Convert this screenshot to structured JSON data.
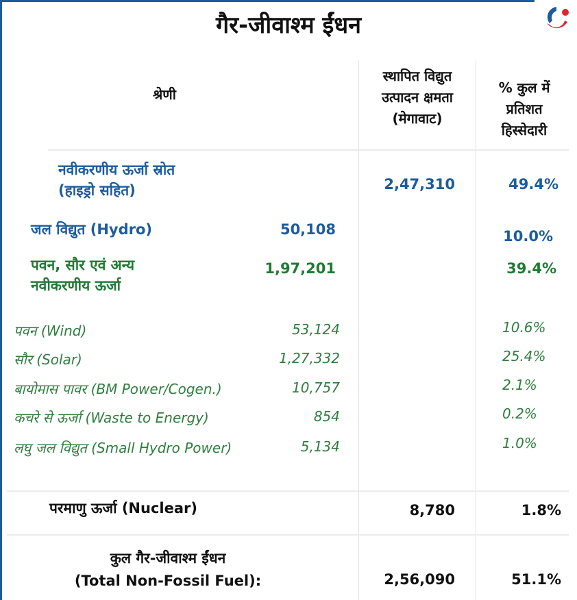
{
  "title": "गैर-जीवाश्म ईंधन",
  "header": {
    "category": "श्रेणी",
    "capacity": [
      "स्थापित विद्युत",
      "उत्पादन क्षमता",
      "(मेगावाट)"
    ],
    "share": [
      "% कुल में",
      "प्रतिशत",
      "हिस्सेदारी"
    ]
  },
  "renewable": {
    "label": [
      "नवीकरणीय ऊर्जा स्रोत",
      "(हाइड्रो सहित)"
    ],
    "capacity": "2,47,310",
    "share": "49.4%"
  },
  "hydro": {
    "label": "जल विद्युत (Hydro)",
    "capacity": "50,108",
    "share": "10.0%"
  },
  "wind_solar_other": {
    "label": [
      "पवन, सौर एवं अन्य",
      "नवीकरणीय ऊर्जा"
    ],
    "capacity": "1,97,201",
    "share": "39.4%"
  },
  "sub_rows": [
    {
      "label": "पवन (Wind)",
      "capacity": "53,124",
      "share": "10.6%"
    },
    {
      "label": "सौर (Solar)",
      "capacity": "1,27,332",
      "share": "25.4%"
    },
    {
      "label": "बायोमास पावर (BM Power/Cogen.)",
      "capacity": "10,757",
      "share": "2.1%"
    },
    {
      "label": "कचरे से ऊर्जा (Waste to Energy)",
      "capacity": "854",
      "share": "0.2%"
    },
    {
      "label": "लघु जल विद्युत (Small Hydro Power)",
      "capacity": "5,134",
      "share": "1.0%"
    }
  ],
  "nuclear": {
    "label": "परमाणु ऊर्जा (Nuclear)",
    "capacity": "8,780",
    "share": "1.8%"
  },
  "total": {
    "label": [
      "कुल गैर-जीवाश्म ईंधन",
      "(Total Non-Fossil Fuel):"
    ],
    "capacity": "2,56,090",
    "share": "51.1%"
  },
  "colors": {
    "blue": "#1d5c9c",
    "green": "#1f7a34",
    "logo_red": "#e0252b"
  }
}
